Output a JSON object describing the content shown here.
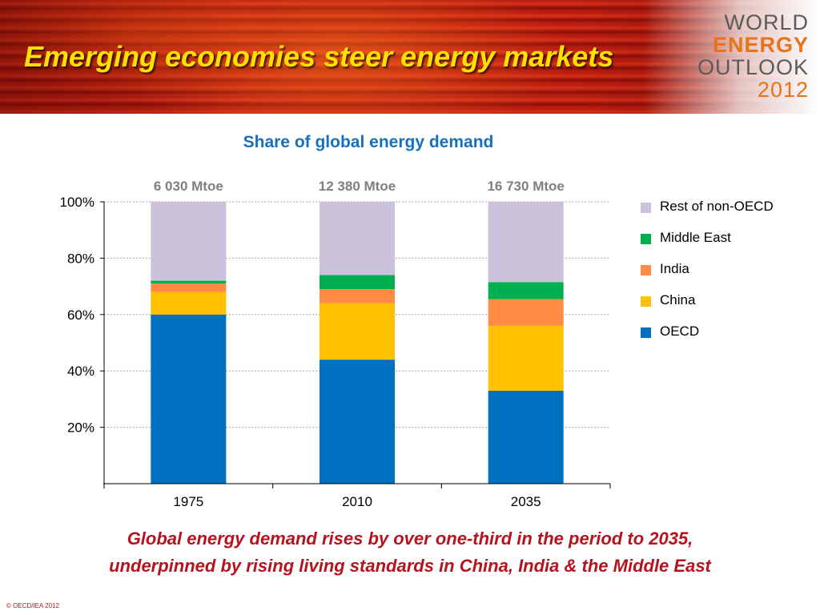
{
  "slide": {
    "title": "Emerging economies steer energy markets",
    "logo": {
      "line1": "WORLD",
      "line2": "ENERGY",
      "line3": "OUTLOOK",
      "line4": "2012"
    },
    "caption_line1": "Global energy demand rises by over one-third in the period to 2035,",
    "caption_line2": "underpinned by rising living standards in China, India & the Middle East",
    "copyright": "© OECD/IEA 2012"
  },
  "chart_data": {
    "type": "bar",
    "stacked": true,
    "title": "Share of global energy demand",
    "xlabel": "",
    "ylabel": "",
    "categories": [
      "1975",
      "2010",
      "2035"
    ],
    "totals": [
      "6 030 Mtoe",
      "12 380 Mtoe",
      "16 730 Mtoe"
    ],
    "ylim": [
      0,
      100
    ],
    "yticks": [
      20,
      40,
      60,
      80,
      100
    ],
    "ytick_labels": [
      "20%",
      "40%",
      "60%",
      "80%",
      "100%"
    ],
    "grid": true,
    "legend_position": "right",
    "series": [
      {
        "name": "OECD",
        "color": "#0070c0",
        "values": [
          60,
          44,
          33
        ]
      },
      {
        "name": "China",
        "color": "#ffc000",
        "values": [
          8,
          20,
          23
        ]
      },
      {
        "name": "India",
        "color": "#ff8c42",
        "values": [
          3,
          5,
          9.5
        ]
      },
      {
        "name": "Middle East",
        "color": "#00b050",
        "values": [
          1,
          5,
          6
        ]
      },
      {
        "name": "Rest of non-OECD",
        "color": "#ccc1da",
        "values": [
          28,
          26,
          28.5
        ]
      }
    ]
  }
}
